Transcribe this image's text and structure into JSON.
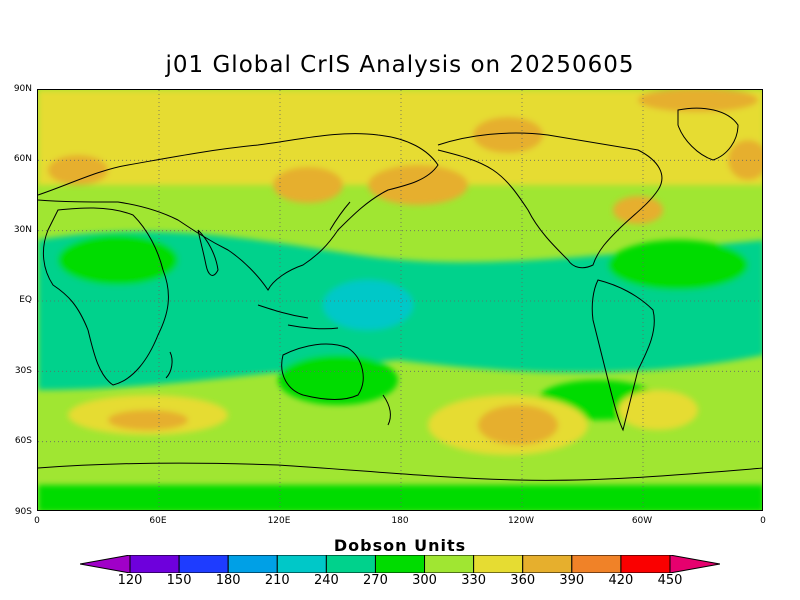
{
  "title": "j01 Global CrIS Analysis on 20250605",
  "lat_labels": [
    "90N",
    "60N",
    "30N",
    "EQ",
    "30S",
    "60S",
    "90S"
  ],
  "lon_labels": [
    "0",
    "60E",
    "120E",
    "180",
    "120W",
    "60W",
    "0"
  ],
  "colorbar": {
    "title": "Dobson Units",
    "ticks": [
      "120",
      "150",
      "180",
      "210",
      "240",
      "270",
      "300",
      "330",
      "360",
      "390",
      "420",
      "450"
    ],
    "colors": [
      "#a000c8",
      "#6e00dc",
      "#1e3cff",
      "#00a0e6",
      "#00c8c8",
      "#00d28c",
      "#00dc00",
      "#a0e632",
      "#e6dc32",
      "#e6af2d",
      "#f08228",
      "#fa0000",
      "#e6006e"
    ]
  },
  "map": {
    "projection": "equirectangular",
    "lon_range": [
      0,
      360
    ],
    "lat_range": [
      -90,
      90
    ],
    "value_units": "Dobson Units",
    "background_color": "#a0e632"
  }
}
